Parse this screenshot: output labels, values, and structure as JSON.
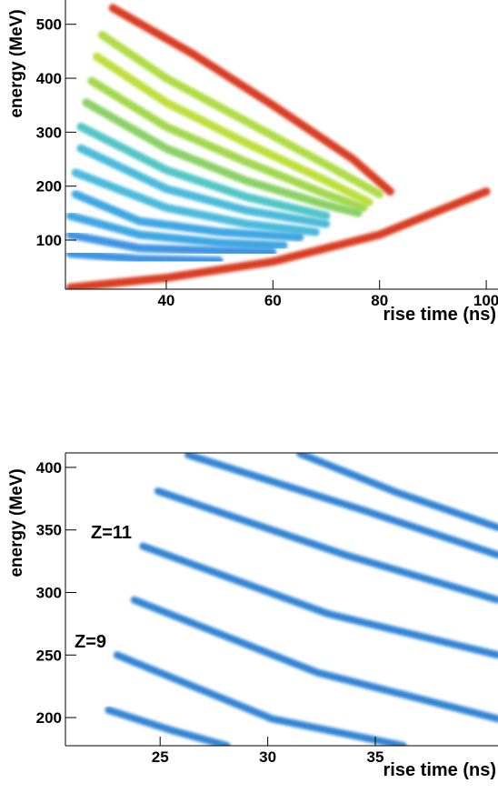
{
  "chart_data": [
    {
      "type": "band",
      "xlabel": "rise time (ns)",
      "ylabel": "energy (MeV)",
      "xlim": [
        21.1,
        102.2
      ],
      "ylim": [
        9,
        545
      ],
      "xticks": [
        40,
        60,
        80,
        100
      ],
      "yticks": [
        100,
        200,
        300,
        400,
        500
      ],
      "series": [
        {
          "color": "#d62a10",
          "x": [
            30,
            45,
            60,
            75,
            82
          ],
          "values": [
            530,
            445,
            350,
            250,
            190
          ]
        },
        {
          "color": "#a8d830",
          "x": [
            28,
            40,
            55,
            70,
            80
          ],
          "values": [
            480,
            400,
            320,
            240,
            185
          ]
        },
        {
          "color": "#b8dc28",
          "x": [
            27,
            40,
            55,
            70,
            78
          ],
          "values": [
            440,
            355,
            280,
            210,
            170
          ]
        },
        {
          "color": "#9ad43a",
          "x": [
            26,
            40,
            55,
            70,
            77
          ],
          "values": [
            395,
            310,
            245,
            185,
            160
          ]
        },
        {
          "color": "#7fcc55",
          "x": [
            25,
            40,
            55,
            70,
            76
          ],
          "values": [
            355,
            270,
            210,
            165,
            150
          ]
        },
        {
          "color": "#40c0c0",
          "x": [
            24,
            40,
            55,
            70
          ],
          "values": [
            310,
            230,
            180,
            145
          ]
        },
        {
          "color": "#38b4d8",
          "x": [
            24,
            40,
            55,
            70
          ],
          "values": [
            270,
            195,
            155,
            130
          ]
        },
        {
          "color": "#38b4d8",
          "x": [
            23,
            40,
            55,
            68
          ],
          "values": [
            225,
            160,
            130,
            115
          ]
        },
        {
          "color": "#2a9ee0",
          "x": [
            23,
            35,
            50,
            65
          ],
          "values": [
            185,
            135,
            115,
            105
          ]
        },
        {
          "color": "#2a9ee0",
          "x": [
            22,
            35,
            50,
            62
          ],
          "values": [
            145,
            110,
            95,
            90
          ]
        },
        {
          "color": "#2a8ae0",
          "x": [
            22,
            35,
            50,
            60
          ],
          "values": [
            110,
            85,
            80,
            78
          ]
        },
        {
          "color": "#2a8ae0",
          "x": [
            22,
            35,
            50
          ],
          "values": [
            75,
            65,
            62
          ]
        },
        {
          "color": "#d62a10",
          "x": [
            22,
            40,
            60,
            80,
            100
          ],
          "values": [
            12,
            30,
            60,
            110,
            190
          ]
        }
      ]
    },
    {
      "type": "band",
      "xlabel": "rise time (ns)",
      "ylabel": "energy (MeV)",
      "xlim": [
        20.6,
        40.7
      ],
      "ylim": [
        177.5,
        411.6
      ],
      "xticks": [
        25,
        30,
        35
      ],
      "yticks": [
        200,
        250,
        300,
        350,
        400
      ],
      "annotations": [
        "Z=11",
        "Z=9"
      ],
      "series": [
        {
          "color": "#1e78d0",
          "x": [
            31.5,
            36,
            40.7
          ],
          "values": [
            411,
            380,
            352
          ]
        },
        {
          "color": "#1e78d0",
          "x": [
            26.3,
            34.4,
            40.7
          ],
          "values": [
            410,
            366,
            330
          ]
        },
        {
          "color": "#1e78d0",
          "x": [
            24.9,
            33.6,
            40.7
          ],
          "values": [
            381,
            330,
            294
          ]
        },
        {
          "color": "#1e78d0",
          "x": [
            24.2,
            32.8,
            40.7
          ],
          "values": [
            337,
            283,
            250
          ]
        },
        {
          "color": "#1e78d0",
          "x": [
            23.8,
            32.3,
            40.7
          ],
          "values": [
            294,
            236,
            199
          ]
        },
        {
          "color": "#1e78d0",
          "x": [
            23.0,
            30.2,
            36.3
          ],
          "values": [
            250,
            199,
            177.5
          ]
        },
        {
          "color": "#1e78d0",
          "x": [
            22.6,
            25.5,
            28.1
          ],
          "values": [
            206,
            190,
            177.5
          ]
        }
      ]
    }
  ]
}
